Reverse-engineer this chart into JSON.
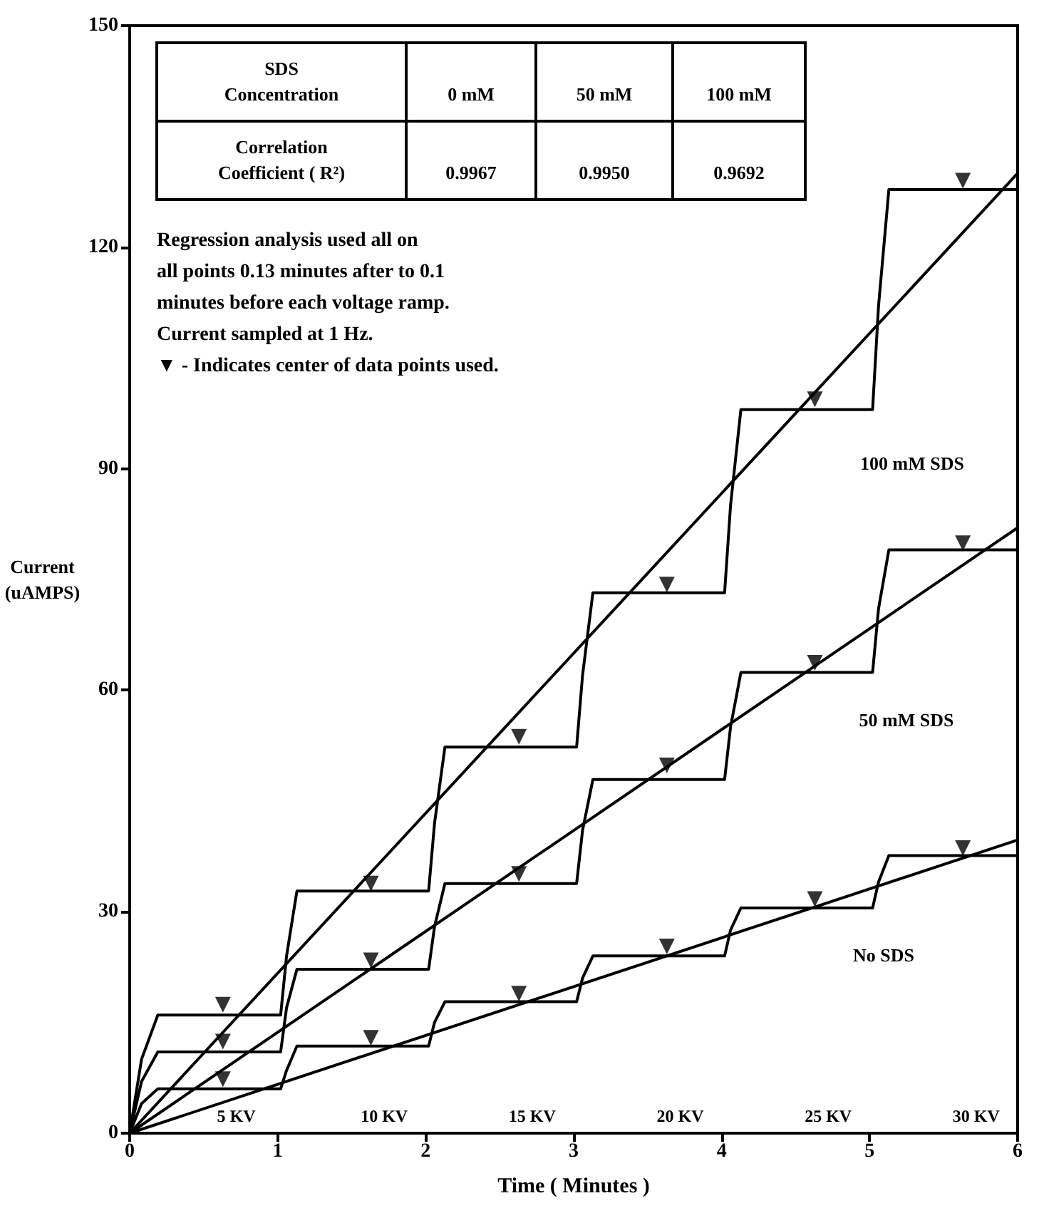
{
  "chart_data": {
    "type": "line",
    "xlabel": "Time ( Minutes )",
    "ylabel": "Current\n(uAMPS)",
    "xlim": [
      0,
      6
    ],
    "ylim": [
      0,
      150
    ],
    "xticks": [
      0,
      1,
      2,
      3,
      4,
      5,
      6
    ],
    "yticks": [
      0,
      30,
      60,
      90,
      120,
      150
    ],
    "grid": false,
    "line_style": "solid",
    "series": [
      {
        "color": "#000000",
        "marker": "none",
        "x": [
          0,
          0.08,
          0.19,
          1.02,
          1.06,
          1.13,
          2.02,
          2.06,
          2.13,
          3.02,
          3.06,
          3.13,
          4.02,
          4.06,
          4.13,
          5.02,
          5.06,
          5.13,
          6
        ],
        "values": [
          0,
          4,
          6,
          6,
          8.5,
          11.8,
          11.8,
          15,
          17.8,
          17.8,
          21,
          24,
          24,
          27.5,
          30.5,
          30.5,
          34,
          37.6,
          37.6
        ]
      },
      {
        "type": "line",
        "color": "#000000",
        "marker": "none",
        "x": [
          0,
          0.08,
          0.19,
          1.02,
          1.06,
          1.13,
          2.02,
          2.06,
          2.13,
          3.02,
          3.06,
          3.13,
          4.02,
          4.06,
          4.13,
          5.02,
          5.06,
          5.13,
          6
        ],
        "values": [
          0,
          7,
          11,
          11,
          17,
          22.2,
          22.2,
          28,
          33.8,
          33.8,
          41,
          47.9,
          47.9,
          55,
          62.4,
          62.4,
          71,
          79,
          79
        ]
      },
      {
        "type": "line",
        "color": "#000000",
        "marker": "none",
        "x": [
          0,
          0.08,
          0.19,
          1.02,
          1.06,
          1.13,
          2.02,
          2.06,
          2.13,
          3.02,
          3.06,
          3.13,
          4.02,
          4.06,
          4.13,
          5.02,
          5.06,
          5.13,
          6
        ],
        "values": [
          0,
          10,
          16,
          16,
          24,
          32.8,
          32.8,
          42,
          52.3,
          52.3,
          62,
          73.2,
          73.2,
          85,
          98,
          98,
          112,
          127.8,
          127.8
        ]
      },
      {
        "type": "line",
        "color": "#000000",
        "marker": "none",
        "x": [
          0,
          6
        ],
        "values": [
          0,
          39.7
        ]
      },
      {
        "type": "line",
        "color": "#000000",
        "marker": "none",
        "x": [
          0,
          6
        ],
        "values": [
          0,
          82
        ]
      },
      {
        "type": "line",
        "color": "#000000",
        "marker": "none",
        "x": [
          0,
          6
        ],
        "values": [
          0,
          130
        ]
      },
      {
        "type": "scatter",
        "color": "#000000",
        "marker": "triangle",
        "x": [
          0.63,
          1.63,
          2.63,
          3.63,
          4.63,
          5.63
        ],
        "values": [
          7.3,
          12.9,
          18.9,
          25.3,
          31.7,
          38.6
        ]
      },
      {
        "type": "scatter",
        "color": "#000000",
        "marker": "triangle",
        "x": [
          0.63,
          1.63,
          2.63,
          3.63,
          4.63,
          5.63
        ],
        "values": [
          12.4,
          23.4,
          35.1,
          49.8,
          63.7,
          79.9
        ]
      },
      {
        "type": "scatter",
        "color": "#000000",
        "marker": "triangle",
        "x": [
          0.63,
          1.63,
          2.63,
          3.63,
          4.63,
          5.63
        ],
        "values": [
          17.4,
          33.8,
          53.7,
          74.3,
          99.4,
          129
        ]
      }
    ],
    "annotations": [
      "SDS\nConcentration",
      "0 mM",
      "50 mM",
      "100 mM",
      "Correlation\nCoefficient ( R²)",
      "0.9967",
      "0.9950",
      "0.9692",
      "Regression analysis used all on\nall points 0.13 minutes after to 0.1\nminutes before each voltage ramp.\nCurrent sampled at 1 Hz.\n▼ - Indicates center of data points used.",
      "100 mM SDS",
      "50 mM SDS",
      "No SDS",
      "5 KV",
      "10 KV",
      "15 KV",
      "20 KV",
      "25 KV",
      "30 KV"
    ]
  }
}
